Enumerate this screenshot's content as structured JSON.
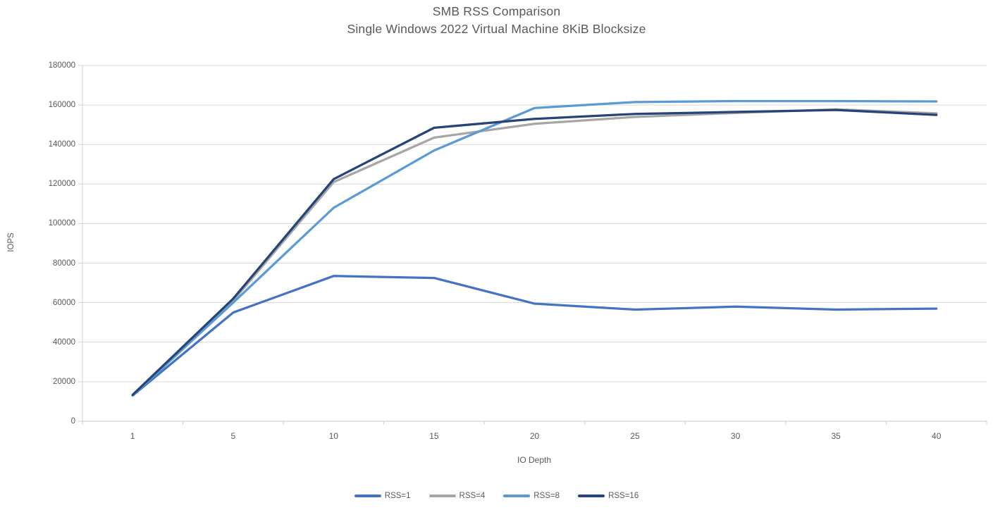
{
  "chart_data": {
    "type": "line",
    "title": "SMB RSS Comparison",
    "subtitle": "Single Windows 2022 Virtual Machine 8KiB Blocksize",
    "xlabel": "IO Depth",
    "ylabel": "IOPS",
    "categories": [
      1,
      5,
      10,
      15,
      20,
      25,
      30,
      35,
      40
    ],
    "series": [
      {
        "name": "RSS=1",
        "color": "#4472c4",
        "values": [
          13000,
          55000,
          73500,
          72500,
          59500,
          56500,
          58000,
          56500,
          57000
        ]
      },
      {
        "name": "RSS=4",
        "color": "#a6a6a6",
        "values": [
          13200,
          61000,
          121000,
          143500,
          150500,
          154000,
          156000,
          157800,
          155800
        ]
      },
      {
        "name": "RSS=8",
        "color": "#5b9bd5",
        "values": [
          13100,
          60000,
          108000,
          137000,
          158500,
          161500,
          162000,
          162000,
          161800
        ]
      },
      {
        "name": "RSS=16",
        "color": "#264478",
        "values": [
          13400,
          62000,
          122500,
          148500,
          153000,
          155500,
          156500,
          157500,
          155000
        ]
      }
    ],
    "ylim": [
      0,
      180000
    ],
    "y_ticks": [
      0,
      20000,
      40000,
      60000,
      80000,
      100000,
      120000,
      140000,
      160000,
      180000
    ],
    "grid": true,
    "legend_position": "bottom",
    "colors": {
      "text": "#595959",
      "gridline": "#d9d9d9",
      "axis": "#d0d0d0"
    }
  }
}
